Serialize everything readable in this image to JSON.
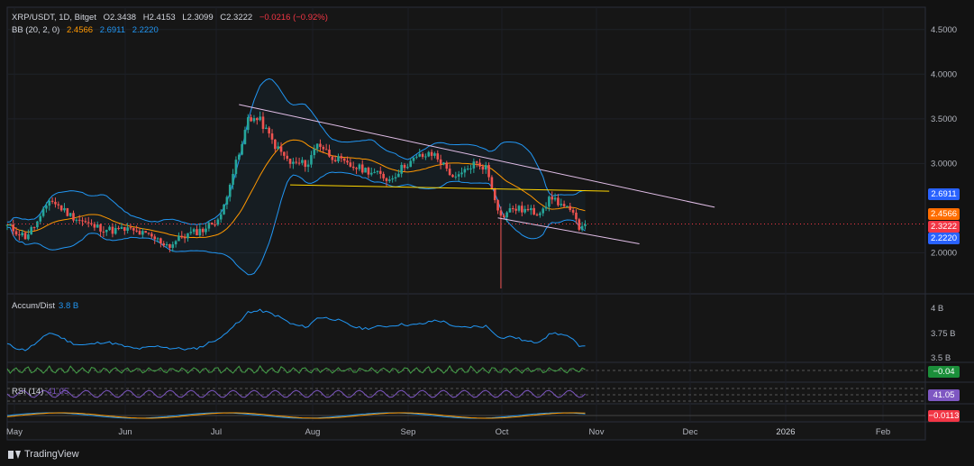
{
  "legend": {
    "symbol": "XRP/USDT, 1D, Bitget",
    "open": "O2.3438",
    "high": "H2.4153",
    "low": "L2.3099",
    "close": "C2.3222",
    "change": "−0.0216 (−0.92%)",
    "bb_label": "BB (20, 2, 0)",
    "bb_basis": "2.4566",
    "bb_upper": "2.6911",
    "bb_lower": "2.2220"
  },
  "indicators": {
    "ad_label": "Accum/Dist",
    "ad_value": "3.8 B",
    "rsi_label": "RSI (14)",
    "rsi_value": "41.05"
  },
  "price_axis": [
    "4.5000",
    "4.0000",
    "3.5000",
    "3.0000",
    "2.0000"
  ],
  "ad_axis": [
    "4 B",
    "3.75 B",
    "3.5 B"
  ],
  "time_axis": [
    "May",
    "Jun",
    "Jul",
    "Aug",
    "Sep",
    "Oct",
    "Nov",
    "Dec",
    "2026",
    "Feb"
  ],
  "price_tags": {
    "upper": "2.6911",
    "basis": "2.4566",
    "close": "2.3222",
    "lower": "2.2220",
    "osc": "−0.04",
    "rsi": "41.05",
    "macd": "−0.0113"
  },
  "footer": {
    "brand": "TradingView"
  },
  "colors": {
    "up": "#26a69a",
    "down": "#ef5350",
    "basis": "#ff9800",
    "band": "#2196f3",
    "trend_upper": "#e1bee7",
    "trend_support": "#ffd600",
    "trend_lower": "#e1bee7",
    "ad": "#2196f3",
    "rsi": "#7e57c2"
  },
  "chart_data": {
    "type": "candlestick",
    "symbol": "XRP/USDT",
    "interval": "1D",
    "exchange": "Bitget",
    "y_axis": {
      "min": 1.55,
      "max": 4.75
    },
    "x_axis": {
      "start": "2025-04-29",
      "end": "2026-02-28"
    },
    "trendlines": [
      {
        "name": "descending resistance",
        "from": [
          "2025-07-15",
          3.66
        ],
        "to": [
          "2025-12-20",
          2.51
        ]
      },
      {
        "name": "horizontal support",
        "from": [
          "2025-08-01",
          2.76
        ],
        "to": [
          "2025-11-15",
          2.69
        ]
      },
      {
        "name": "lower channel",
        "from": [
          "2025-10-09",
          2.39
        ],
        "to": [
          "2025-11-25",
          2.1
        ]
      }
    ],
    "last_close": 2.3222,
    "bollinger_last": {
      "upper": 2.6911,
      "basis": 2.4566,
      "lower": 2.222
    },
    "accum_dist_last": "3.8 B",
    "rsi_last": 41.05,
    "osc_last": -0.04,
    "macd_last": -0.0113,
    "price_path": [
      [
        "2025-04-29",
        2.3
      ],
      [
        "2025-05-05",
        2.18
      ],
      [
        "2025-05-10",
        2.38
      ],
      [
        "2025-05-13",
        2.6
      ],
      [
        "2025-05-20",
        2.42
      ],
      [
        "2025-05-27",
        2.3
      ],
      [
        "2025-06-03",
        2.25
      ],
      [
        "2025-06-08",
        2.26
      ],
      [
        "2025-06-14",
        2.2
      ],
      [
        "2025-06-22",
        2.08
      ],
      [
        "2025-06-26",
        2.18
      ],
      [
        "2025-07-03",
        2.26
      ],
      [
        "2025-07-09",
        2.4
      ],
      [
        "2025-07-12",
        2.8
      ],
      [
        "2025-07-16",
        3.2
      ],
      [
        "2025-07-18",
        3.52
      ],
      [
        "2025-07-22",
        3.48
      ],
      [
        "2025-07-27",
        3.2
      ],
      [
        "2025-08-01",
        3.0
      ],
      [
        "2025-08-07",
        3.0
      ],
      [
        "2025-08-10",
        3.24
      ],
      [
        "2025-08-14",
        3.1
      ],
      [
        "2025-08-20",
        2.98
      ],
      [
        "2025-08-27",
        2.92
      ],
      [
        "2025-09-03",
        2.82
      ],
      [
        "2025-09-08",
        2.98
      ],
      [
        "2025-09-13",
        3.08
      ],
      [
        "2025-09-18",
        3.1
      ],
      [
        "2025-09-25",
        2.82
      ],
      [
        "2025-10-01",
        3.0
      ],
      [
        "2025-10-05",
        2.96
      ],
      [
        "2025-10-10",
        2.4
      ],
      [
        "2025-10-14",
        2.5
      ],
      [
        "2025-10-22",
        2.45
      ],
      [
        "2025-10-27",
        2.62
      ],
      [
        "2025-11-02",
        2.46
      ],
      [
        "2025-11-05",
        2.3
      ],
      [
        "2025-11-07",
        2.32
      ]
    ]
  }
}
